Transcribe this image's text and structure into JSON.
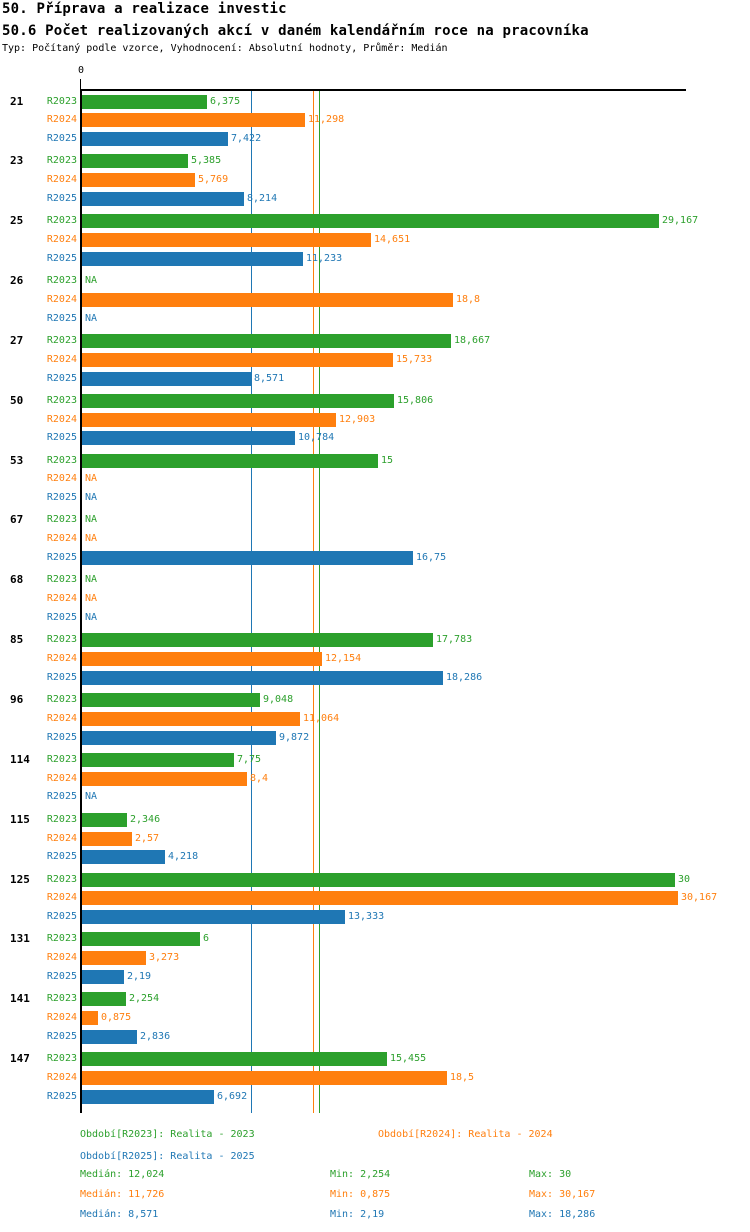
{
  "header": {
    "title": "50. Příprava a realizace investic",
    "subtitle": "50.6 Počet realizovaných akcí v daném kalendářním roce na pracovníka",
    "meta": "Typ: Počítaný podle vzorce, Vyhodnocení: Absolutní hodnoty, Průměr: Medián"
  },
  "chart_data": {
    "type": "bar",
    "orientation": "horizontal",
    "title": "50.6 Počet realizovaných akcí v daném kalendářním roce na pracovníka",
    "x_axis": {
      "origin_label": "0",
      "xlim": [
        0,
        30.6
      ],
      "gridlines": false
    },
    "na_label": "NA",
    "series_order": [
      "R2023",
      "R2024",
      "R2025"
    ],
    "series_colors": {
      "R2023": "#2ca02c",
      "R2024": "#ff7f0e",
      "R2025": "#1f77b4"
    },
    "median_lines": {
      "R2023": "12,024",
      "R2024": "11,726",
      "R2025": "8,571"
    },
    "categories": [
      "21",
      "23",
      "25",
      "26",
      "27",
      "50",
      "53",
      "67",
      "68",
      "85",
      "96",
      "114",
      "115",
      "125",
      "131",
      "141",
      "147"
    ],
    "groups": [
      {
        "category": "21",
        "values": {
          "R2023": "6,375",
          "R2024": "11,298",
          "R2025": "7,422"
        }
      },
      {
        "category": "23",
        "values": {
          "R2023": "5,385",
          "R2024": "5,769",
          "R2025": "8,214"
        }
      },
      {
        "category": "25",
        "values": {
          "R2023": "29,167",
          "R2024": "14,651",
          "R2025": "11,233"
        }
      },
      {
        "category": "26",
        "values": {
          "R2023": "NA",
          "R2024": "18,8",
          "R2025": "NA"
        }
      },
      {
        "category": "27",
        "values": {
          "R2023": "18,667",
          "R2024": "15,733",
          "R2025": "8,571"
        }
      },
      {
        "category": "50",
        "values": {
          "R2023": "15,806",
          "R2024": "12,903",
          "R2025": "10,784"
        }
      },
      {
        "category": "53",
        "values": {
          "R2023": "15",
          "R2024": "NA",
          "R2025": "NA"
        }
      },
      {
        "category": "67",
        "values": {
          "R2023": "NA",
          "R2024": "NA",
          "R2025": "16,75"
        }
      },
      {
        "category": "68",
        "values": {
          "R2023": "NA",
          "R2024": "NA",
          "R2025": "NA"
        }
      },
      {
        "category": "85",
        "values": {
          "R2023": "17,783",
          "R2024": "12,154",
          "R2025": "18,286"
        }
      },
      {
        "category": "96",
        "values": {
          "R2023": "9,048",
          "R2024": "11,064",
          "R2025": "9,872"
        }
      },
      {
        "category": "114",
        "values": {
          "R2023": "7,75",
          "R2024": "8,4",
          "R2025": "NA"
        }
      },
      {
        "category": "115",
        "values": {
          "R2023": "2,346",
          "R2024": "2,57",
          "R2025": "4,218"
        }
      },
      {
        "category": "125",
        "values": {
          "R2023": "30",
          "R2024": "30,167",
          "R2025": "13,333"
        }
      },
      {
        "category": "131",
        "values": {
          "R2023": "6",
          "R2024": "3,273",
          "R2025": "2,19"
        }
      },
      {
        "category": "141",
        "values": {
          "R2023": "2,254",
          "R2024": "0,875",
          "R2025": "2,836"
        }
      },
      {
        "category": "147",
        "values": {
          "R2023": "15,455",
          "R2024": "18,5",
          "R2025": "6,692"
        }
      }
    ]
  },
  "legend": {
    "items": [
      {
        "series": "R2023",
        "label": "Období[R2023]: Realita - 2023"
      },
      {
        "series": "R2024",
        "label": "Období[R2024]: Realita - 2024"
      },
      {
        "series": "R2025",
        "label": "Období[R2025]: Realita - 2025"
      }
    ]
  },
  "stats": {
    "rows": [
      {
        "series": "R2023",
        "median": "Medián: 12,024",
        "min": "Min: 2,254",
        "max": "Max: 30"
      },
      {
        "series": "R2024",
        "median": "Medián: 11,726",
        "min": "Min: 0,875",
        "max": "Max: 30,167"
      },
      {
        "series": "R2025",
        "median": "Medián: 8,571",
        "min": "Min: 2,19",
        "max": "Max: 18,286"
      }
    ]
  }
}
